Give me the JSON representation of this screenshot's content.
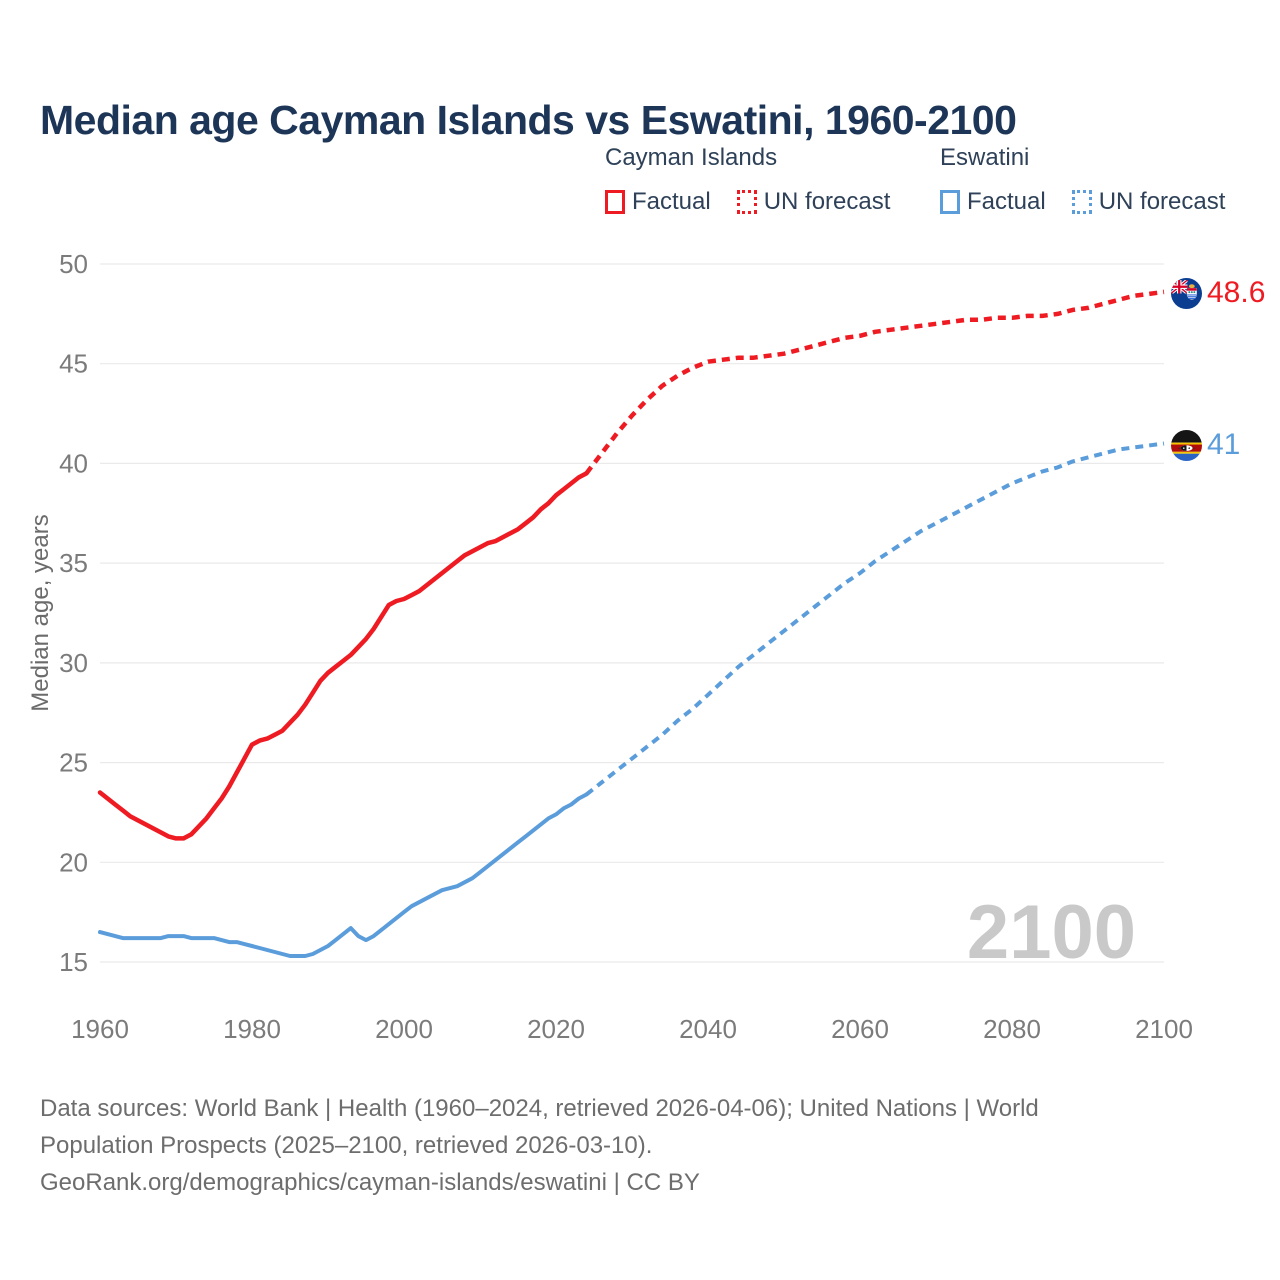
{
  "title": "Median age Cayman Islands vs Eswatini, 1960-2100",
  "legend": {
    "groups": [
      {
        "label": "Cayman Islands",
        "color": "#ee1b22",
        "items": [
          {
            "label": "Factual",
            "style": "solid"
          },
          {
            "label": "UN forecast",
            "style": "dotted"
          }
        ]
      },
      {
        "label": "Eswatini",
        "color": "#5b9ddb",
        "items": [
          {
            "label": "Factual",
            "style": "solid"
          },
          {
            "label": "UN forecast",
            "style": "dotted"
          }
        ]
      }
    ]
  },
  "end_labels": [
    {
      "series": "Cayman Islands",
      "value": "48.6",
      "color": "#ee1b22",
      "flag": "cayman-islands-flag"
    },
    {
      "series": "Eswatini",
      "value": "41",
      "color": "#5b9ddb",
      "flag": "eswatini-flag"
    }
  ],
  "watermark": "2100",
  "footer_lines": [
    "Data sources: World Bank | Health (1960–2024, retrieved 2026-04-06); United Nations | World",
    "Population Prospects (2025–2100, retrieved 2026-03-10).",
    "GeoRank.org/demographics/cayman-islands/eswatini | CC BY"
  ],
  "colors": {
    "title": "#1d3557",
    "axis_text": "#7b7b7b",
    "axis_title": "#6b6b6b",
    "gridline": "#eaeaea",
    "watermark": "#c9c9c9",
    "cayman": "#ee1b22",
    "eswatini": "#5b9ddb"
  },
  "chart_data": {
    "type": "line",
    "title": "Median age Cayman Islands vs Eswatini, 1960-2100",
    "xlabel": "",
    "ylabel": "Median age, years",
    "xlim": [
      1960,
      2100
    ],
    "ylim": [
      15,
      50
    ],
    "x_ticks": [
      1960,
      1980,
      2000,
      2020,
      2040,
      2060,
      2080,
      2100
    ],
    "y_ticks": [
      15,
      20,
      25,
      30,
      35,
      40,
      45,
      50
    ],
    "grid": "horizontal",
    "legend_position": "top",
    "series": [
      {
        "name": "Cayman Islands — Factual",
        "color": "#ee1b22",
        "dash": "solid",
        "width": 4.5,
        "points": [
          [
            1960,
            23.5
          ],
          [
            1961,
            23.2
          ],
          [
            1962,
            22.9
          ],
          [
            1963,
            22.6
          ],
          [
            1964,
            22.3
          ],
          [
            1965,
            22.1
          ],
          [
            1966,
            21.9
          ],
          [
            1967,
            21.7
          ],
          [
            1968,
            21.5
          ],
          [
            1969,
            21.3
          ],
          [
            1970,
            21.2
          ],
          [
            1971,
            21.2
          ],
          [
            1972,
            21.4
          ],
          [
            1973,
            21.8
          ],
          [
            1974,
            22.2
          ],
          [
            1975,
            22.7
          ],
          [
            1976,
            23.2
          ],
          [
            1977,
            23.8
          ],
          [
            1978,
            24.5
          ],
          [
            1979,
            25.2
          ],
          [
            1980,
            25.9
          ],
          [
            1981,
            26.1
          ],
          [
            1982,
            26.2
          ],
          [
            1983,
            26.4
          ],
          [
            1984,
            26.6
          ],
          [
            1985,
            27.0
          ],
          [
            1986,
            27.4
          ],
          [
            1987,
            27.9
          ],
          [
            1988,
            28.5
          ],
          [
            1989,
            29.1
          ],
          [
            1990,
            29.5
          ],
          [
            1991,
            29.8
          ],
          [
            1992,
            30.1
          ],
          [
            1993,
            30.4
          ],
          [
            1994,
            30.8
          ],
          [
            1995,
            31.2
          ],
          [
            1996,
            31.7
          ],
          [
            1997,
            32.3
          ],
          [
            1998,
            32.9
          ],
          [
            1999,
            33.1
          ],
          [
            2000,
            33.2
          ],
          [
            2001,
            33.4
          ],
          [
            2002,
            33.6
          ],
          [
            2003,
            33.9
          ],
          [
            2004,
            34.2
          ],
          [
            2005,
            34.5
          ],
          [
            2006,
            34.8
          ],
          [
            2007,
            35.1
          ],
          [
            2008,
            35.4
          ],
          [
            2009,
            35.6
          ],
          [
            2010,
            35.8
          ],
          [
            2011,
            36.0
          ],
          [
            2012,
            36.1
          ],
          [
            2013,
            36.3
          ],
          [
            2014,
            36.5
          ],
          [
            2015,
            36.7
          ],
          [
            2016,
            37.0
          ],
          [
            2017,
            37.3
          ],
          [
            2018,
            37.7
          ],
          [
            2019,
            38.0
          ],
          [
            2020,
            38.4
          ],
          [
            2021,
            38.7
          ],
          [
            2022,
            39.0
          ],
          [
            2023,
            39.3
          ],
          [
            2024,
            39.5
          ]
        ]
      },
      {
        "name": "Cayman Islands — UN forecast",
        "color": "#ee1b22",
        "dash": "dashed",
        "width": 4.5,
        "points": [
          [
            2024,
            39.5
          ],
          [
            2026,
            40.5
          ],
          [
            2028,
            41.5
          ],
          [
            2030,
            42.4
          ],
          [
            2032,
            43.2
          ],
          [
            2034,
            43.9
          ],
          [
            2036,
            44.4
          ],
          [
            2038,
            44.8
          ],
          [
            2040,
            45.1
          ],
          [
            2042,
            45.2
          ],
          [
            2044,
            45.3
          ],
          [
            2046,
            45.3
          ],
          [
            2048,
            45.4
          ],
          [
            2050,
            45.5
          ],
          [
            2052,
            45.7
          ],
          [
            2054,
            45.9
          ],
          [
            2056,
            46.1
          ],
          [
            2058,
            46.3
          ],
          [
            2060,
            46.4
          ],
          [
            2062,
            46.6
          ],
          [
            2064,
            46.7
          ],
          [
            2066,
            46.8
          ],
          [
            2068,
            46.9
          ],
          [
            2070,
            47.0
          ],
          [
            2072,
            47.1
          ],
          [
            2074,
            47.2
          ],
          [
            2076,
            47.2
          ],
          [
            2078,
            47.3
          ],
          [
            2080,
            47.3
          ],
          [
            2082,
            47.4
          ],
          [
            2084,
            47.4
          ],
          [
            2086,
            47.5
          ],
          [
            2088,
            47.7
          ],
          [
            2090,
            47.8
          ],
          [
            2092,
            48.0
          ],
          [
            2094,
            48.2
          ],
          [
            2096,
            48.4
          ],
          [
            2098,
            48.5
          ],
          [
            2100,
            48.6
          ]
        ]
      },
      {
        "name": "Eswatini — Factual",
        "color": "#5b9ddb",
        "dash": "solid",
        "width": 4,
        "points": [
          [
            1960,
            16.5
          ],
          [
            1961,
            16.4
          ],
          [
            1962,
            16.3
          ],
          [
            1963,
            16.2
          ],
          [
            1964,
            16.2
          ],
          [
            1965,
            16.2
          ],
          [
            1966,
            16.2
          ],
          [
            1967,
            16.2
          ],
          [
            1968,
            16.2
          ],
          [
            1969,
            16.3
          ],
          [
            1970,
            16.3
          ],
          [
            1971,
            16.3
          ],
          [
            1972,
            16.2
          ],
          [
            1973,
            16.2
          ],
          [
            1974,
            16.2
          ],
          [
            1975,
            16.2
          ],
          [
            1976,
            16.1
          ],
          [
            1977,
            16.0
          ],
          [
            1978,
            16.0
          ],
          [
            1979,
            15.9
          ],
          [
            1980,
            15.8
          ],
          [
            1981,
            15.7
          ],
          [
            1982,
            15.6
          ],
          [
            1983,
            15.5
          ],
          [
            1984,
            15.4
          ],
          [
            1985,
            15.3
          ],
          [
            1986,
            15.3
          ],
          [
            1987,
            15.3
          ],
          [
            1988,
            15.4
          ],
          [
            1989,
            15.6
          ],
          [
            1990,
            15.8
          ],
          [
            1991,
            16.1
          ],
          [
            1992,
            16.4
          ],
          [
            1993,
            16.7
          ],
          [
            1994,
            16.3
          ],
          [
            1995,
            16.1
          ],
          [
            1996,
            16.3
          ],
          [
            1997,
            16.6
          ],
          [
            1998,
            16.9
          ],
          [
            1999,
            17.2
          ],
          [
            2000,
            17.5
          ],
          [
            2001,
            17.8
          ],
          [
            2002,
            18.0
          ],
          [
            2003,
            18.2
          ],
          [
            2004,
            18.4
          ],
          [
            2005,
            18.6
          ],
          [
            2006,
            18.7
          ],
          [
            2007,
            18.8
          ],
          [
            2008,
            19.0
          ],
          [
            2009,
            19.2
          ],
          [
            2010,
            19.5
          ],
          [
            2011,
            19.8
          ],
          [
            2012,
            20.1
          ],
          [
            2013,
            20.4
          ],
          [
            2014,
            20.7
          ],
          [
            2015,
            21.0
          ],
          [
            2016,
            21.3
          ],
          [
            2017,
            21.6
          ],
          [
            2018,
            21.9
          ],
          [
            2019,
            22.2
          ],
          [
            2020,
            22.4
          ],
          [
            2021,
            22.7
          ],
          [
            2022,
            22.9
          ],
          [
            2023,
            23.2
          ],
          [
            2024,
            23.4
          ]
        ]
      },
      {
        "name": "Eswatini — UN forecast",
        "color": "#5b9ddb",
        "dash": "dashed",
        "width": 4,
        "points": [
          [
            2024,
            23.4
          ],
          [
            2026,
            24.0
          ],
          [
            2028,
            24.6
          ],
          [
            2030,
            25.2
          ],
          [
            2032,
            25.8
          ],
          [
            2034,
            26.4
          ],
          [
            2036,
            27.1
          ],
          [
            2038,
            27.7
          ],
          [
            2040,
            28.4
          ],
          [
            2042,
            29.1
          ],
          [
            2044,
            29.8
          ],
          [
            2046,
            30.4
          ],
          [
            2048,
            31.0
          ],
          [
            2050,
            31.6
          ],
          [
            2052,
            32.2
          ],
          [
            2054,
            32.8
          ],
          [
            2056,
            33.4
          ],
          [
            2058,
            34.0
          ],
          [
            2060,
            34.5
          ],
          [
            2062,
            35.1
          ],
          [
            2064,
            35.6
          ],
          [
            2066,
            36.1
          ],
          [
            2068,
            36.6
          ],
          [
            2070,
            37.0
          ],
          [
            2072,
            37.4
          ],
          [
            2074,
            37.8
          ],
          [
            2076,
            38.2
          ],
          [
            2078,
            38.6
          ],
          [
            2080,
            39.0
          ],
          [
            2082,
            39.3
          ],
          [
            2084,
            39.6
          ],
          [
            2086,
            39.8
          ],
          [
            2088,
            40.1
          ],
          [
            2090,
            40.3
          ],
          [
            2092,
            40.5
          ],
          [
            2094,
            40.7
          ],
          [
            2096,
            40.8
          ],
          [
            2098,
            40.9
          ],
          [
            2100,
            41.0
          ]
        ]
      }
    ],
    "end_values": {
      "cayman": 48.6,
      "eswatini": 41
    }
  }
}
